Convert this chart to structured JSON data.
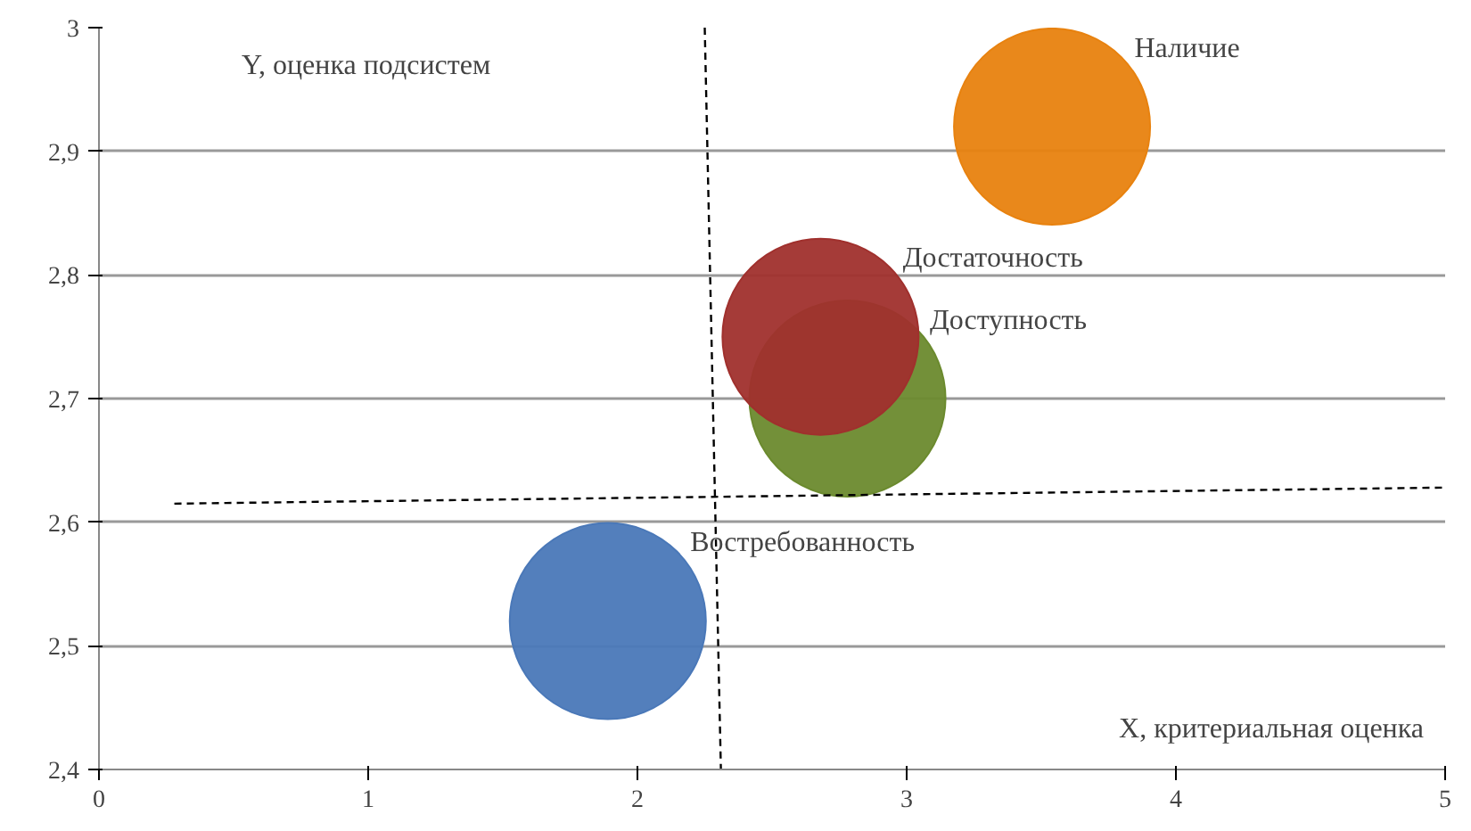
{
  "chart_data": {
    "type": "bubble",
    "xlabel": "X, критериальная оценка",
    "ylabel": "Y, оценка подсистем",
    "xlim": [
      0,
      5
    ],
    "xticks": [
      0,
      1,
      2,
      3,
      4,
      5
    ],
    "ylim": [
      2.4,
      3
    ],
    "yticks": [
      {
        "value": 2.4,
        "label": "2,4"
      },
      {
        "value": 2.5,
        "label": "2,5"
      },
      {
        "value": 2.6,
        "label": "2,6"
      },
      {
        "value": 2.7,
        "label": "2,7"
      },
      {
        "value": 2.8,
        "label": "2,8"
      },
      {
        "value": 2.9,
        "label": "2,9"
      },
      {
        "value": 3,
        "label": "3"
      }
    ],
    "grid": "y",
    "series": [
      {
        "name": "Наличие",
        "color": "#e8820f",
        "x": [
          3.54
        ],
        "values": [
          2.92
        ],
        "sizes": [
          1
        ]
      },
      {
        "name": "Доступность",
        "color": "#6b8a2e",
        "x": [
          2.78
        ],
        "values": [
          2.7
        ],
        "sizes": [
          1
        ]
      },
      {
        "name": "Достаточность",
        "color": "#a0302d",
        "x": [
          2.68
        ],
        "values": [
          2.75
        ],
        "sizes": [
          1
        ]
      },
      {
        "name": "Востребованность",
        "color": "#4a78b8",
        "x": [
          1.89
        ],
        "values": [
          2.52
        ],
        "sizes": [
          1
        ]
      },
      {
        "type": "line",
        "color": "#000000",
        "line_style": "dashed",
        "x": [
          0.28,
          5
        ],
        "values": [
          2.615,
          2.628
        ]
      },
      {
        "type": "line",
        "color": "#000000",
        "line_style": "dashed",
        "x": [
          2.25,
          2.31
        ],
        "values": [
          3,
          2.4
        ]
      }
    ]
  }
}
